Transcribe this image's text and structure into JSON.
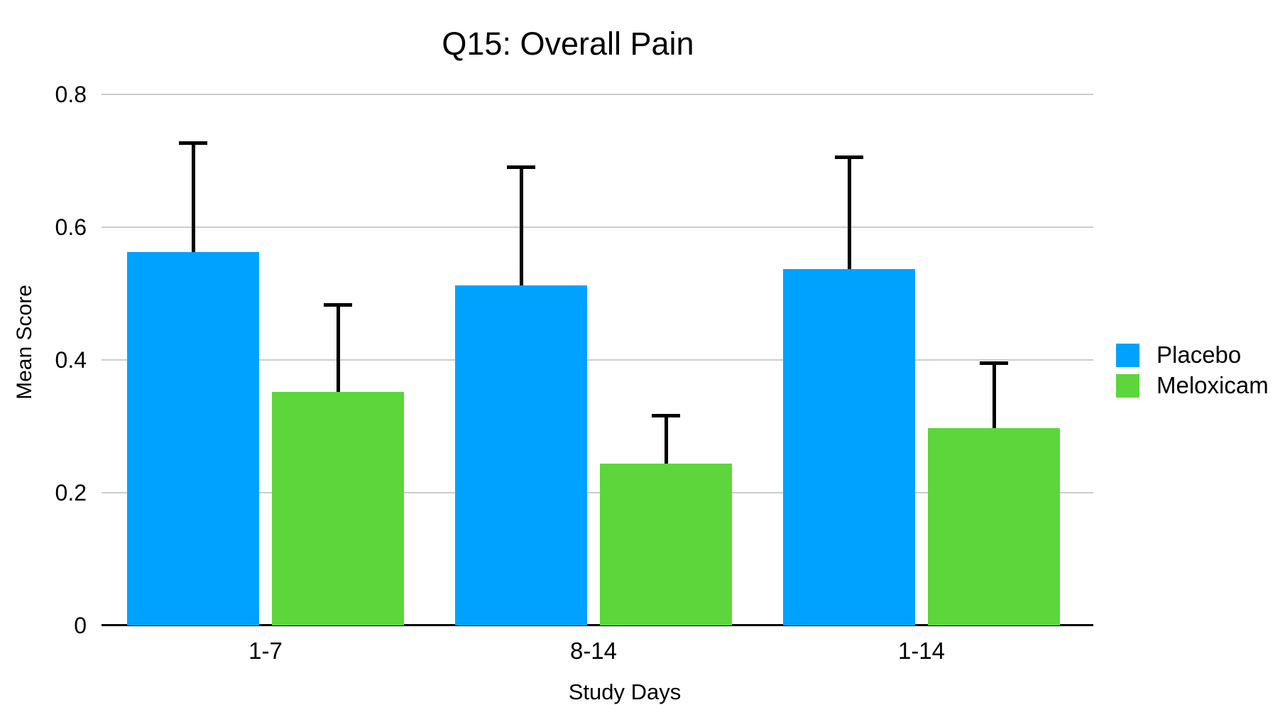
{
  "chart_data": {
    "type": "bar",
    "title": "Q15: Overall Pain",
    "ylabel": "Mean Score",
    "xlabel": "Study Days",
    "categories": [
      "1-7",
      "8-14",
      "1-14"
    ],
    "series": [
      {
        "name": "Placebo",
        "color": "#00A2FF",
        "values": [
          0.563,
          0.512,
          0.537
        ],
        "error_upper": [
          0.166,
          0.181,
          0.171
        ]
      },
      {
        "name": "Meloxicam",
        "color": "#5DD63C",
        "values": [
          0.352,
          0.244,
          0.297
        ],
        "error_upper": [
          0.134,
          0.075,
          0.101
        ]
      }
    ],
    "ylim": [
      0,
      0.8
    ],
    "yticks": [
      0,
      0.2,
      0.4,
      0.6,
      0.8
    ],
    "ytick_labels": [
      "0",
      "0.2",
      "0.4",
      "0.6",
      "0.8"
    ],
    "grid": true,
    "legend_position": "right",
    "error_bar_color": "#000000",
    "axis_color": "#000000",
    "gridline_color": "#CCCCCC"
  }
}
